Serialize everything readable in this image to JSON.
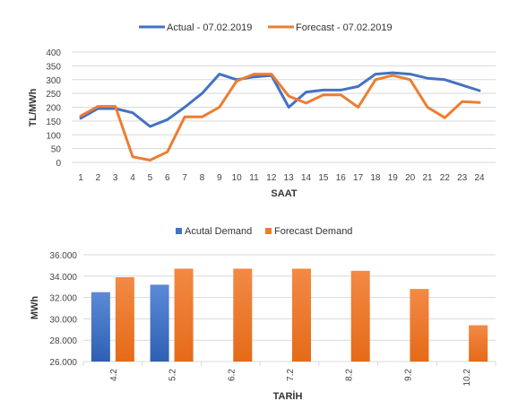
{
  "chart_data": [
    {
      "type": "line",
      "xlabel": "SAAT",
      "ylabel": "TL/MWh",
      "ylim": [
        0,
        400
      ],
      "yticks": [
        "400",
        "350",
        "300",
        "250",
        "200",
        "150",
        "100",
        "50",
        "0"
      ],
      "x": [
        "1",
        "2",
        "3",
        "4",
        "5",
        "6",
        "7",
        "8",
        "9",
        "10",
        "11",
        "12",
        "13",
        "14",
        "15",
        "16",
        "17",
        "18",
        "19",
        "20",
        "21",
        "22",
        "23",
        "24"
      ],
      "grid": true,
      "legend_position": "top",
      "series": [
        {
          "name": "Actual - 07.02.2019",
          "color": "#4472c4",
          "values": [
            160,
            195,
            195,
            180,
            130,
            155,
            200,
            250,
            320,
            300,
            310,
            315,
            200,
            255,
            262,
            262,
            275,
            320,
            325,
            320,
            305,
            300,
            280,
            260
          ]
        },
        {
          "name": "Forecast - 07.02.2019",
          "color": "#ed7d31",
          "values": [
            168,
            203,
            203,
            20,
            8,
            38,
            165,
            165,
            200,
            295,
            320,
            320,
            240,
            215,
            245,
            245,
            200,
            300,
            315,
            300,
            200,
            162,
            220,
            217
          ]
        }
      ]
    },
    {
      "type": "bar",
      "xlabel": "TARİH",
      "ylabel": "MWh",
      "ylim": [
        26000,
        36000
      ],
      "yticks": [
        "36.000",
        "34.000",
        "32.000",
        "30.000",
        "28.000",
        "26.000"
      ],
      "categories": [
        "4.2",
        "5.2",
        "6.2",
        "7.2",
        "8.2",
        "9.2",
        "10.2"
      ],
      "grid": true,
      "legend_position": "top",
      "series": [
        {
          "name": "Acutal Demand",
          "color": "#4472c4",
          "values": [
            32500,
            33200,
            null,
            null,
            null,
            null,
            null
          ]
        },
        {
          "name": "Forecast Demand",
          "color": "#ed7d31",
          "values": [
            33900,
            34700,
            34700,
            34700,
            34500,
            32800,
            29400
          ]
        }
      ]
    }
  ]
}
